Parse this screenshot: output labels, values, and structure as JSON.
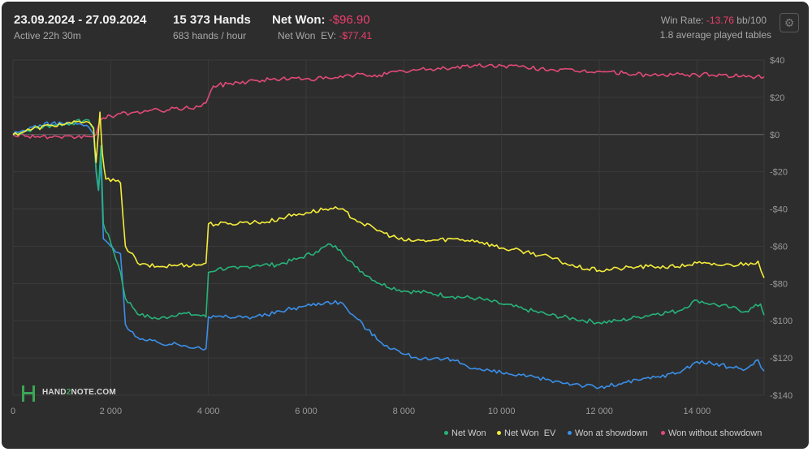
{
  "header": {
    "date_range": "23.09.2024 - 27.09.2024",
    "active": "Active 22h 30m",
    "hands": "15 373 Hands",
    "hands_per_hour": "683 hands / hour",
    "net_won_label": "Net Won:",
    "net_won_value": "-$96.90",
    "net_won_ev_label": "Net Won  EV:",
    "net_won_ev_value": "-$77.41",
    "win_rate_label": "Win Rate:",
    "win_rate_value": "-13.76",
    "win_rate_unit": "bb/100",
    "avg_tables": "1.8 average played tables"
  },
  "logo": {
    "text_a": "HAND",
    "text_b": "2",
    "text_c": "NOTE.COM"
  },
  "icons": {
    "settings": "gear-icon"
  },
  "colors": {
    "net_won": "#27b37a",
    "net_won_ev": "#f4ec3a",
    "showdown": "#3b8fe8",
    "non_showdown": "#e24a78",
    "background": "#2d2d2d",
    "negative_text": "#ee3f6e"
  },
  "chart_data": {
    "type": "line",
    "xlim": [
      0,
      15373
    ],
    "ylim": [
      -140,
      40
    ],
    "x_ticks": [
      0,
      2000,
      4000,
      6000,
      8000,
      10000,
      12000,
      14000
    ],
    "x_tick_labels": [
      "0",
      "2 000",
      "4 000",
      "6 000",
      "8 000",
      "10 000",
      "12 000",
      "14 000"
    ],
    "y_ticks": [
      40,
      20,
      0,
      -20,
      -40,
      -60,
      -80,
      -100,
      -120,
      -140
    ],
    "y_tick_labels": [
      "$40",
      "$20",
      "$0",
      "-$20",
      "-$40",
      "-$60",
      "-$80",
      "-$100",
      "-$120",
      "-$140"
    ],
    "grid": true,
    "legend_position": "bottom-right",
    "series": [
      {
        "name": "Net Won",
        "color_key": "net_won",
        "points": [
          [
            0,
            0
          ],
          [
            400,
            3
          ],
          [
            800,
            5
          ],
          [
            1200,
            6
          ],
          [
            1500,
            8
          ],
          [
            1650,
            4
          ],
          [
            1700,
            -18
          ],
          [
            1750,
            -30
          ],
          [
            1800,
            -6
          ],
          [
            1850,
            -48
          ],
          [
            2000,
            -58
          ],
          [
            2200,
            -74
          ],
          [
            2300,
            -88
          ],
          [
            2600,
            -97
          ],
          [
            3000,
            -99
          ],
          [
            3400,
            -96
          ],
          [
            3800,
            -97
          ],
          [
            3950,
            -98
          ],
          [
            4000,
            -74
          ],
          [
            4200,
            -72
          ],
          [
            4600,
            -72
          ],
          [
            5000,
            -70
          ],
          [
            5400,
            -70
          ],
          [
            5800,
            -67
          ],
          [
            6200,
            -63
          ],
          [
            6500,
            -59
          ],
          [
            6700,
            -62
          ],
          [
            7000,
            -71
          ],
          [
            7500,
            -80
          ],
          [
            8000,
            -84
          ],
          [
            8500,
            -85
          ],
          [
            9000,
            -87
          ],
          [
            9500,
            -88
          ],
          [
            10000,
            -91
          ],
          [
            10500,
            -94
          ],
          [
            11000,
            -97
          ],
          [
            11500,
            -99
          ],
          [
            12000,
            -101
          ],
          [
            12400,
            -100
          ],
          [
            12800,
            -98
          ],
          [
            13200,
            -96
          ],
          [
            13600,
            -95
          ],
          [
            14000,
            -89
          ],
          [
            14300,
            -91
          ],
          [
            14700,
            -93
          ],
          [
            15000,
            -95
          ],
          [
            15300,
            -91
          ],
          [
            15373,
            -97
          ]
        ]
      },
      {
        "name": "Net Won  EV",
        "color_key": "net_won_ev",
        "points": [
          [
            0,
            0
          ],
          [
            400,
            3
          ],
          [
            800,
            5
          ],
          [
            1200,
            6
          ],
          [
            1500,
            7
          ],
          [
            1650,
            3
          ],
          [
            1700,
            -15
          ],
          [
            1780,
            12
          ],
          [
            1830,
            -10
          ],
          [
            1900,
            -24
          ],
          [
            2200,
            -26
          ],
          [
            2300,
            -60
          ],
          [
            2600,
            -70
          ],
          [
            3000,
            -71
          ],
          [
            3400,
            -70
          ],
          [
            3800,
            -70
          ],
          [
            3950,
            -69
          ],
          [
            4000,
            -48
          ],
          [
            4400,
            -48
          ],
          [
            4800,
            -47
          ],
          [
            5200,
            -47
          ],
          [
            5600,
            -44
          ],
          [
            6000,
            -42
          ],
          [
            6400,
            -40
          ],
          [
            6700,
            -40
          ],
          [
            7100,
            -47
          ],
          [
            7600,
            -53
          ],
          [
            8000,
            -57
          ],
          [
            8500,
            -57
          ],
          [
            9000,
            -56
          ],
          [
            9500,
            -57
          ],
          [
            10000,
            -61
          ],
          [
            10500,
            -63
          ],
          [
            11000,
            -66
          ],
          [
            11500,
            -71
          ],
          [
            12000,
            -73
          ],
          [
            12400,
            -72
          ],
          [
            12800,
            -71
          ],
          [
            13200,
            -71
          ],
          [
            13600,
            -71
          ],
          [
            14000,
            -69
          ],
          [
            14300,
            -70
          ],
          [
            14700,
            -70
          ],
          [
            15100,
            -69
          ],
          [
            15250,
            -68
          ],
          [
            15373,
            -77
          ]
        ]
      },
      {
        "name": "Won at showdown",
        "color_key": "showdown",
        "points": [
          [
            0,
            0
          ],
          [
            400,
            4
          ],
          [
            800,
            6
          ],
          [
            1200,
            6
          ],
          [
            1500,
            5
          ],
          [
            1650,
            0
          ],
          [
            1700,
            -20
          ],
          [
            1750,
            -30
          ],
          [
            1800,
            -15
          ],
          [
            1850,
            -56
          ],
          [
            2000,
            -60
          ],
          [
            2200,
            -64
          ],
          [
            2300,
            -102
          ],
          [
            2600,
            -110
          ],
          [
            3000,
            -112
          ],
          [
            3400,
            -113
          ],
          [
            3800,
            -114
          ],
          [
            3950,
            -115
          ],
          [
            4000,
            -98
          ],
          [
            4400,
            -98
          ],
          [
            4800,
            -98
          ],
          [
            5200,
            -97
          ],
          [
            5600,
            -94
          ],
          [
            6000,
            -92
          ],
          [
            6400,
            -90
          ],
          [
            6700,
            -90
          ],
          [
            7000,
            -98
          ],
          [
            7500,
            -111
          ],
          [
            8000,
            -118
          ],
          [
            8500,
            -121
          ],
          [
            9000,
            -121
          ],
          [
            9500,
            -126
          ],
          [
            10000,
            -128
          ],
          [
            10500,
            -130
          ],
          [
            11000,
            -132
          ],
          [
            11500,
            -134
          ],
          [
            12000,
            -136
          ],
          [
            12400,
            -134
          ],
          [
            12800,
            -132
          ],
          [
            13200,
            -130
          ],
          [
            13600,
            -128
          ],
          [
            14000,
            -122
          ],
          [
            14300,
            -123
          ],
          [
            14700,
            -125
          ],
          [
            15000,
            -126
          ],
          [
            15250,
            -121
          ],
          [
            15373,
            -127
          ]
        ]
      },
      {
        "name": "Won without showdown",
        "color_key": "non_showdown",
        "points": [
          [
            0,
            0
          ],
          [
            500,
            -1
          ],
          [
            1000,
            -2
          ],
          [
            1500,
            -1
          ],
          [
            1700,
            0
          ],
          [
            1800,
            8
          ],
          [
            2000,
            10
          ],
          [
            2500,
            12
          ],
          [
            3000,
            13
          ],
          [
            3500,
            14
          ],
          [
            3800,
            15
          ],
          [
            3950,
            17
          ],
          [
            4100,
            26
          ],
          [
            4600,
            28
          ],
          [
            5000,
            29
          ],
          [
            5500,
            30
          ],
          [
            6000,
            30
          ],
          [
            6500,
            30
          ],
          [
            7000,
            32
          ],
          [
            7500,
            32
          ],
          [
            8000,
            34
          ],
          [
            8500,
            35
          ],
          [
            9000,
            36
          ],
          [
            9500,
            37
          ],
          [
            10000,
            37
          ],
          [
            10500,
            36
          ],
          [
            11000,
            35
          ],
          [
            11500,
            34
          ],
          [
            12000,
            34
          ],
          [
            12500,
            33
          ],
          [
            13000,
            32
          ],
          [
            13500,
            32
          ],
          [
            14000,
            32
          ],
          [
            14500,
            32
          ],
          [
            15000,
            31
          ],
          [
            15373,
            31
          ]
        ]
      }
    ]
  }
}
